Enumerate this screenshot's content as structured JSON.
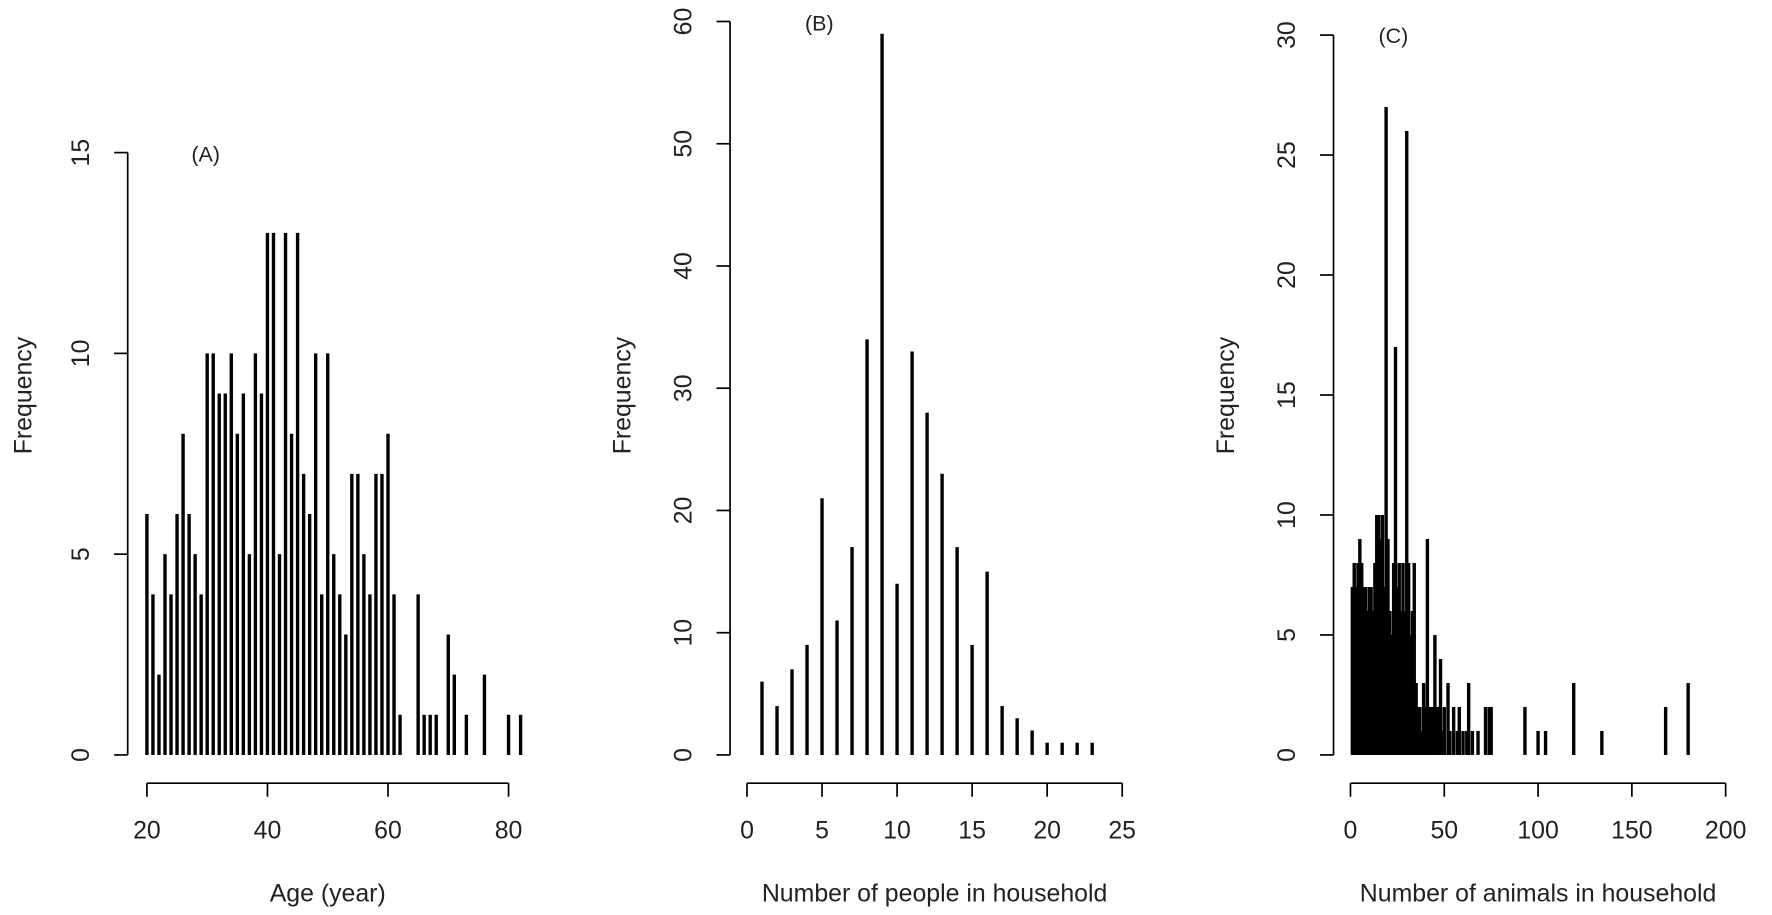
{
  "chart_data": [
    {
      "type": "bar",
      "annotation": "(A)",
      "x_label": "Age (year)",
      "y_label": "Frequency",
      "color": "#000000",
      "x": [
        20,
        21,
        22,
        23,
        24,
        25,
        26,
        27,
        28,
        29,
        30,
        31,
        32,
        33,
        34,
        35,
        36,
        37,
        38,
        39,
        40,
        41,
        42,
        43,
        44,
        45,
        46,
        47,
        48,
        49,
        50,
        51,
        52,
        53,
        54,
        55,
        56,
        57,
        58,
        59,
        60,
        61,
        62,
        65,
        66,
        67,
        68,
        70,
        71,
        73,
        76,
        80,
        82
      ],
      "values": [
        6,
        4,
        2,
        5,
        4,
        6,
        8,
        6,
        5,
        4,
        10,
        10,
        9,
        9,
        10,
        8,
        9,
        5,
        10,
        9,
        13,
        13,
        5,
        13,
        8,
        13,
        7,
        6,
        10,
        4,
        10,
        5,
        4,
        3,
        7,
        7,
        5,
        4,
        7,
        7,
        8,
        4,
        1,
        4,
        1,
        1,
        1,
        3,
        2,
        1,
        2,
        1,
        1
      ],
      "xlim": [
        20,
        80
      ],
      "xticks": [
        20,
        40,
        60,
        80
      ],
      "ylim": [
        0,
        15
      ],
      "yticks": [
        0,
        5,
        10,
        15
      ]
    },
    {
      "type": "bar",
      "annotation": "(B)",
      "x_label": "Number of people in household",
      "y_label": "Frequency",
      "color": "#000000",
      "x": [
        1,
        2,
        3,
        4,
        5,
        6,
        7,
        8,
        9,
        10,
        11,
        12,
        13,
        14,
        15,
        16,
        17,
        18,
        19,
        20,
        21,
        22,
        23
      ],
      "values": [
        6,
        4,
        7,
        9,
        21,
        11,
        17,
        34,
        59,
        14,
        33,
        28,
        23,
        17,
        9,
        15,
        4,
        3,
        2,
        1,
        1,
        1,
        1
      ],
      "xlim": [
        0,
        25
      ],
      "xticks": [
        0,
        5,
        10,
        15,
        20,
        25
      ],
      "ylim": [
        0,
        60
      ],
      "yticks": [
        0,
        10,
        20,
        30,
        40,
        50,
        60
      ]
    },
    {
      "type": "bar",
      "annotation": "(C)",
      "x_label": "Number of animals in household",
      "y_label": "Frequency",
      "color": "#000000",
      "x": [
        1,
        2,
        3,
        4,
        5,
        6,
        7,
        8,
        9,
        10,
        11,
        12,
        13,
        14,
        15,
        16,
        17,
        18,
        19,
        20,
        21,
        22,
        23,
        24,
        25,
        26,
        27,
        28,
        29,
        30,
        31,
        32,
        33,
        34,
        35,
        36,
        37,
        38,
        39,
        40,
        41,
        42,
        43,
        44,
        45,
        46,
        47,
        48,
        49,
        50,
        52,
        53,
        55,
        57,
        58,
        60,
        62,
        63,
        65,
        68,
        72,
        74,
        75,
        93,
        100,
        104,
        119,
        134,
        168,
        180
      ],
      "values": [
        7,
        8,
        7,
        8,
        9,
        8,
        7,
        7,
        6,
        7,
        7,
        6,
        8,
        10,
        10,
        9,
        10,
        7,
        27,
        9,
        6,
        5,
        8,
        17,
        7,
        8,
        6,
        8,
        6,
        26,
        8,
        5,
        6,
        8,
        3,
        2,
        2,
        1,
        3,
        2,
        9,
        2,
        2,
        2,
        5,
        2,
        2,
        4,
        1,
        2,
        3,
        1,
        2,
        1,
        2,
        1,
        1,
        3,
        1,
        1,
        2,
        2,
        2,
        2,
        1,
        1,
        3,
        1,
        2,
        3
      ],
      "xlim": [
        0,
        200
      ],
      "xticks": [
        0,
        50,
        100,
        150,
        200
      ],
      "ylim": [
        0,
        30
      ],
      "yticks": [
        0,
        5,
        10,
        15,
        20,
        25,
        30
      ]
    }
  ]
}
